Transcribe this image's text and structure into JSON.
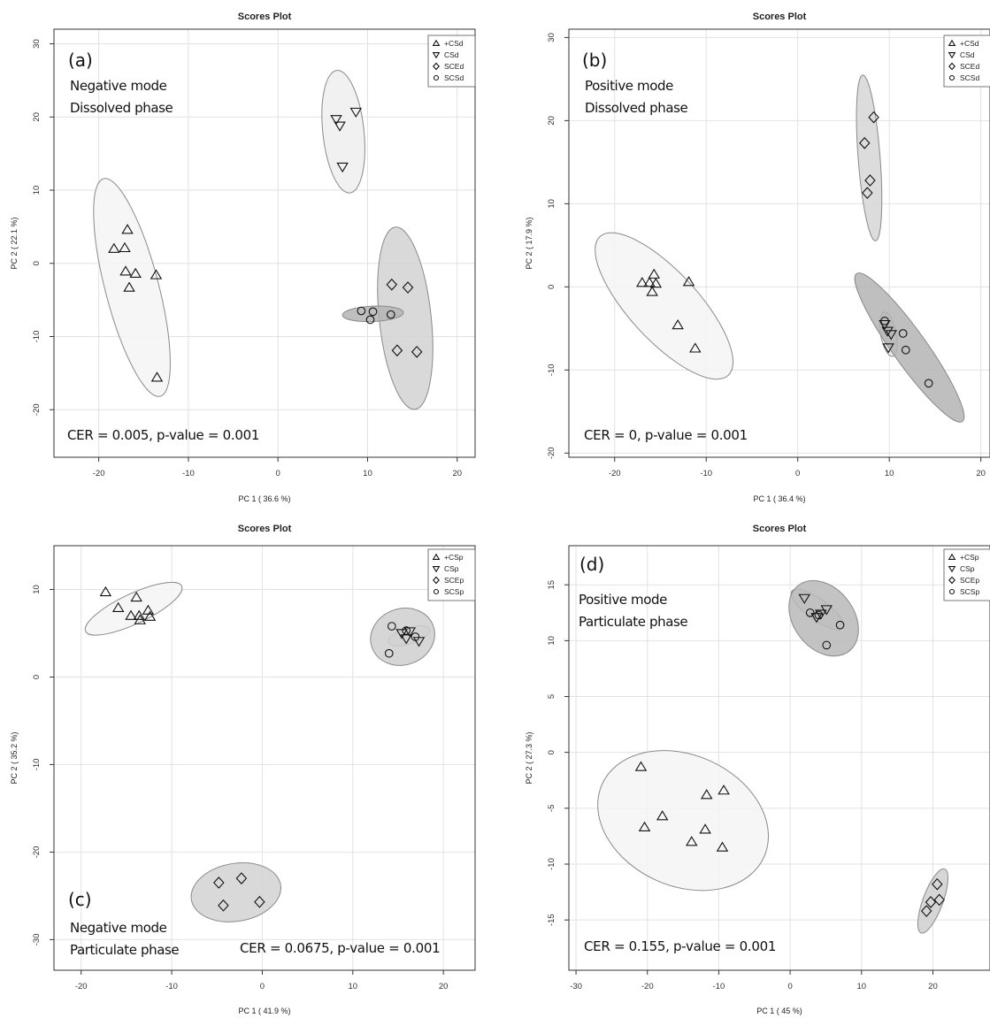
{
  "chart_data": [
    {
      "type": "scatter",
      "panel": "(a)",
      "title": "Scores Plot",
      "xlabel": "PC 1 ( 36.6 %)",
      "ylabel": "PC 2 ( 22.1 %)",
      "xlim": [
        -25,
        22
      ],
      "ylim": [
        -26.5,
        32
      ],
      "xticks": [
        -20,
        -10,
        0,
        10,
        20
      ],
      "yticks": [
        -20,
        -10,
        0,
        10,
        20,
        30
      ],
      "grid": true,
      "legend_position": "top-right",
      "annotation_lines": [
        "Negative mode",
        "Dissolved phase"
      ],
      "cer_text": "CER = 0.005, p-value = 0.001",
      "series": [
        {
          "name": "+CSd",
          "marker": "triangle-up",
          "x": [
            -16.8,
            -18.3,
            -17.1,
            -17.0,
            -15.9,
            -16.6,
            -13.6,
            -13.5
          ],
          "y": [
            4.6,
            2.0,
            2.1,
            -1.1,
            -1.4,
            -3.3,
            -1.6,
            -15.6
          ],
          "ellipse": {
            "cx": -16.3,
            "cy": -3.3,
            "rx": 15.2,
            "ry": 3.0,
            "angle": -78,
            "fill": "#f4f4f4"
          }
        },
        {
          "name": "CSd",
          "marker": "triangle-down",
          "x": [
            6.5,
            6.9,
            8.7,
            7.2
          ],
          "y": [
            19.7,
            18.8,
            20.7,
            13.2
          ],
          "ellipse": {
            "cx": 7.3,
            "cy": 18.0,
            "rx": 8.4,
            "ry": 2.3,
            "angle": -85,
            "fill": "#eeeeee"
          }
        },
        {
          "name": "SCEd",
          "marker": "diamond",
          "x": [
            12.7,
            14.5,
            13.3,
            15.5
          ],
          "y": [
            -2.9,
            -3.3,
            -11.9,
            -12.1
          ],
          "ellipse": {
            "cx": 14.2,
            "cy": -7.5,
            "rx": 12.5,
            "ry": 2.9,
            "angle": -85,
            "fill": "#d2d2d2"
          }
        },
        {
          "name": "SCSd",
          "marker": "circle",
          "x": [
            9.3,
            10.6,
            10.3,
            12.6
          ],
          "y": [
            -6.5,
            -6.6,
            -7.7,
            -7.0
          ],
          "ellipse": {
            "cx": 10.6,
            "cy": -6.9,
            "rx": 3.4,
            "ry": 1.05,
            "angle": 3,
            "fill": "#b4b4b4"
          }
        }
      ]
    },
    {
      "type": "scatter",
      "panel": "(b)",
      "title": "Scores Plot",
      "xlabel": "PC 1 ( 36.4 %)",
      "ylabel": "PC 2 ( 17.9 %)",
      "xlim": [
        -25,
        21
      ],
      "ylim": [
        -20.5,
        31
      ],
      "xticks": [
        -20,
        -10,
        0,
        10,
        20
      ],
      "yticks": [
        -20,
        -10,
        0,
        10,
        20,
        30
      ],
      "grid": true,
      "legend_position": "top-right",
      "annotation_lines": [
        "Positive mode",
        "Dissolved phase"
      ],
      "cer_text": "CER = 0, p-value = 0.001",
      "series": [
        {
          "name": "+CSd",
          "marker": "triangle-up",
          "x": [
            -17.0,
            -16.2,
            -15.7,
            -15.5,
            -15.9,
            -11.9,
            -13.1,
            -11.2
          ],
          "y": [
            0.5,
            0.5,
            1.5,
            0.4,
            -0.6,
            0.6,
            -4.6,
            -7.4
          ],
          "ellipse": {
            "cx": -14.6,
            "cy": -2.3,
            "rx": 10.9,
            "ry": 3.9,
            "angle": -50,
            "fill": "#f4f4f4"
          }
        },
        {
          "name": "CSd",
          "marker": "triangle-down",
          "x": [
            9.5,
            9.8,
            10.2,
            9.9
          ],
          "y": [
            -4.5,
            -5.3,
            -5.7,
            -7.3
          ],
          "ellipse": {
            "cx": 9.9,
            "cy": -5.7,
            "rx": 2.7,
            "ry": 0.85,
            "angle": -80,
            "fill": "#e8e8e8"
          }
        },
        {
          "name": "SCEd",
          "marker": "diamond",
          "x": [
            8.3,
            7.3,
            7.9,
            7.6
          ],
          "y": [
            20.4,
            17.3,
            12.8,
            11.3
          ],
          "ellipse": {
            "cx": 7.8,
            "cy": 15.5,
            "rx": 10.0,
            "ry": 1.2,
            "angle": -86,
            "fill": "#d6d6d6"
          }
        },
        {
          "name": "SCSd",
          "marker": "circle",
          "x": [
            9.5,
            11.5,
            11.8,
            14.3
          ],
          "y": [
            -4.1,
            -5.6,
            -7.6,
            -11.6
          ],
          "ellipse": {
            "cx": 12.2,
            "cy": -7.3,
            "rx": 10.6,
            "ry": 1.9,
            "angle": -57,
            "fill": "#b4b4b4"
          }
        }
      ]
    },
    {
      "type": "scatter",
      "panel": "(c)",
      "title": "Scores Plot",
      "xlabel": "PC 1 ( 41.9 %)",
      "ylabel": "PC 2 ( 35.2 %)",
      "xlim": [
        -23,
        23.5
      ],
      "ylim": [
        -33.5,
        15
      ],
      "xticks": [
        -20,
        -10,
        0,
        10,
        20
      ],
      "yticks": [
        -30,
        -20,
        -10,
        0,
        10
      ],
      "grid": true,
      "legend_position": "top-right",
      "annotation_lines": [
        "Negative mode",
        "Particulate phase"
      ],
      "cer_text": "CER = 0.0675, p-value = 0.001",
      "series": [
        {
          "name": "+CSp",
          "marker": "triangle-up",
          "x": [
            -17.3,
            -15.9,
            -13.9,
            -14.5,
            -13.6,
            -13.5,
            -12.6,
            -12.4
          ],
          "y": [
            9.7,
            7.9,
            9.1,
            7.0,
            7.0,
            6.5,
            7.6,
            6.9
          ],
          "ellipse": {
            "cx": -14.2,
            "cy": 7.8,
            "rx": 5.9,
            "ry": 1.7,
            "angle": 26,
            "fill": "#f4f4f4"
          }
        },
        {
          "name": "CSp",
          "marker": "triangle-down",
          "x": [
            15.4,
            15.9,
            16.3,
            17.3
          ],
          "y": [
            5.0,
            4.4,
            5.2,
            4.1
          ],
          "ellipse": {
            "cx": 16.2,
            "cy": 4.7,
            "rx": 2.4,
            "ry": 0.9,
            "angle": 18,
            "fill": "#e6e6e6"
          }
        },
        {
          "name": "SCEp",
          "marker": "diamond",
          "x": [
            -4.8,
            -2.3,
            -4.3,
            -0.3
          ],
          "y": [
            -23.5,
            -23.0,
            -26.1,
            -25.7
          ],
          "ellipse": {
            "cx": -2.9,
            "cy": -24.6,
            "rx": 5.0,
            "ry": 3.3,
            "angle": 10,
            "fill": "#d2d2d2"
          }
        },
        {
          "name": "SCSp",
          "marker": "circle",
          "x": [
            14.3,
            15.9,
            16.9,
            14.0
          ],
          "y": [
            5.8,
            5.3,
            4.6,
            2.7
          ],
          "ellipse": {
            "cx": 15.5,
            "cy": 4.6,
            "rx": 3.6,
            "ry": 3.2,
            "angle": 20,
            "fill": "#cfcfcf"
          }
        }
      ]
    },
    {
      "type": "scatter",
      "panel": "(d)",
      "title": "Scores Plot",
      "xlabel": "PC 1 ( 45 %)",
      "ylabel": "PC 2 ( 27.3 %)",
      "xlim": [
        -31,
        28
      ],
      "ylim": [
        -19.5,
        18.5
      ],
      "xticks": [
        -30,
        -20,
        -10,
        0,
        10,
        20
      ],
      "yticks": [
        -15,
        -10,
        -5,
        0,
        5,
        10,
        15
      ],
      "grid": true,
      "legend_position": "top-right",
      "annotation_lines": [
        "Positive mode",
        "Particulate phase"
      ],
      "cer_text": "CER = 0.155, p-value = 0.001",
      "series": [
        {
          "name": "+CSp",
          "marker": "triangle-up",
          "x": [
            -20.9,
            -20.4,
            -17.9,
            -11.7,
            -9.3,
            -11.9,
            -13.8,
            -9.5
          ],
          "y": [
            -1.3,
            -6.7,
            -5.7,
            -3.8,
            -3.4,
            -6.9,
            -8.0,
            -8.5
          ],
          "ellipse": {
            "cx": -15.0,
            "cy": -6.1,
            "rx": 11.8,
            "ry": 6.0,
            "angle": -16,
            "fill": "#f4f4f4"
          }
        },
        {
          "name": "CSp",
          "marker": "triangle-down",
          "x": [
            2.0,
            4.3,
            5.1,
            3.7
          ],
          "y": [
            13.8,
            12.4,
            12.8,
            12.1
          ],
          "ellipse": {
            "cx": 3.8,
            "cy": 12.8,
            "rx": 3.9,
            "ry": 1.0,
            "angle": -25,
            "fill": "#e6e6e6"
          }
        },
        {
          "name": "SCEp",
          "marker": "diamond",
          "x": [
            20.6,
            19.7,
            20.9,
            19.1
          ],
          "y": [
            -11.8,
            -13.4,
            -13.2,
            -14.2
          ],
          "ellipse": {
            "cx": 20.0,
            "cy": -13.3,
            "rx": 3.3,
            "ry": 1.2,
            "angle": 60,
            "fill": "#cfcfcf"
          }
        },
        {
          "name": "SCSp",
          "marker": "circle",
          "x": [
            2.8,
            4.0,
            7.0,
            5.1
          ],
          "y": [
            12.5,
            12.3,
            11.4,
            9.6
          ],
          "ellipse": {
            "cx": 4.7,
            "cy": 12.0,
            "rx": 4.6,
            "ry": 3.1,
            "angle": -40,
            "fill": "#b8b8b8"
          }
        }
      ]
    }
  ]
}
